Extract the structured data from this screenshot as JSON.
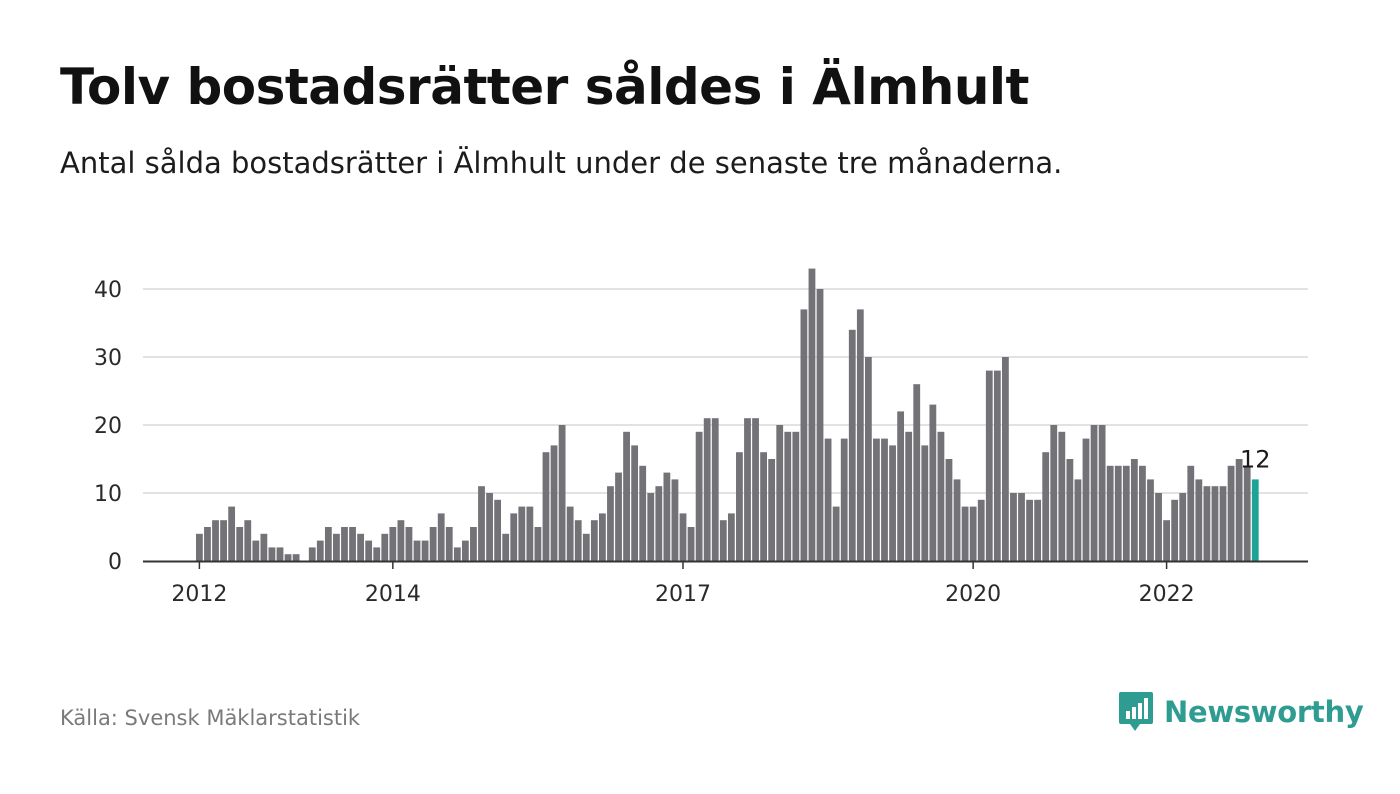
{
  "title": "Tolv bostadsrätter såldes i Älmhult",
  "subtitle": "Antal sålda bostadsrätter i Älmhult under de senaste tre månaderna.",
  "source": "Källa: Svensk Mäklarstatistik",
  "brand": {
    "name": "Newsworthy",
    "icon": "newsworthy-logo-icon",
    "color": "#2f9c92"
  },
  "colors": {
    "bar": "#737277",
    "highlight": "#1ea496",
    "grid": "#d9d9d9",
    "axis": "#333333"
  },
  "chart_data": {
    "type": "bar",
    "xlabel": "",
    "ylabel": "",
    "ylim": [
      0,
      45
    ],
    "yticks": [
      0,
      10,
      20,
      30,
      40
    ],
    "grid": true,
    "x_start": "2012-01",
    "xticks": [
      {
        "label": "2012",
        "index": 0
      },
      {
        "label": "2014",
        "index": 24
      },
      {
        "label": "2017",
        "index": 60
      },
      {
        "label": "2020",
        "index": 96
      },
      {
        "label": "2022",
        "index": 120
      }
    ],
    "values": [
      4,
      5,
      6,
      6,
      8,
      5,
      6,
      3,
      4,
      2,
      2,
      1,
      1,
      0,
      2,
      3,
      5,
      4,
      5,
      5,
      4,
      3,
      2,
      4,
      5,
      6,
      5,
      3,
      3,
      5,
      7,
      5,
      2,
      3,
      5,
      11,
      10,
      9,
      4,
      7,
      8,
      8,
      5,
      16,
      17,
      20,
      8,
      6,
      4,
      6,
      7,
      11,
      13,
      19,
      17,
      14,
      10,
      11,
      13,
      12,
      7,
      5,
      19,
      21,
      21,
      6,
      7,
      16,
      21,
      21,
      16,
      15,
      20,
      19,
      19,
      37,
      43,
      40,
      18,
      8,
      18,
      34,
      37,
      30,
      18,
      18,
      17,
      22,
      19,
      26,
      17,
      23,
      19,
      15,
      12,
      8,
      8,
      9,
      28,
      28,
      30,
      10,
      10,
      9,
      9,
      16,
      20,
      19,
      15,
      12,
      18,
      20,
      20,
      14,
      14,
      14,
      15,
      14,
      12,
      10,
      6,
      9,
      10,
      14,
      12,
      11,
      11,
      11,
      14,
      15,
      14,
      12
    ],
    "highlight_last": true,
    "last_label": "12"
  }
}
